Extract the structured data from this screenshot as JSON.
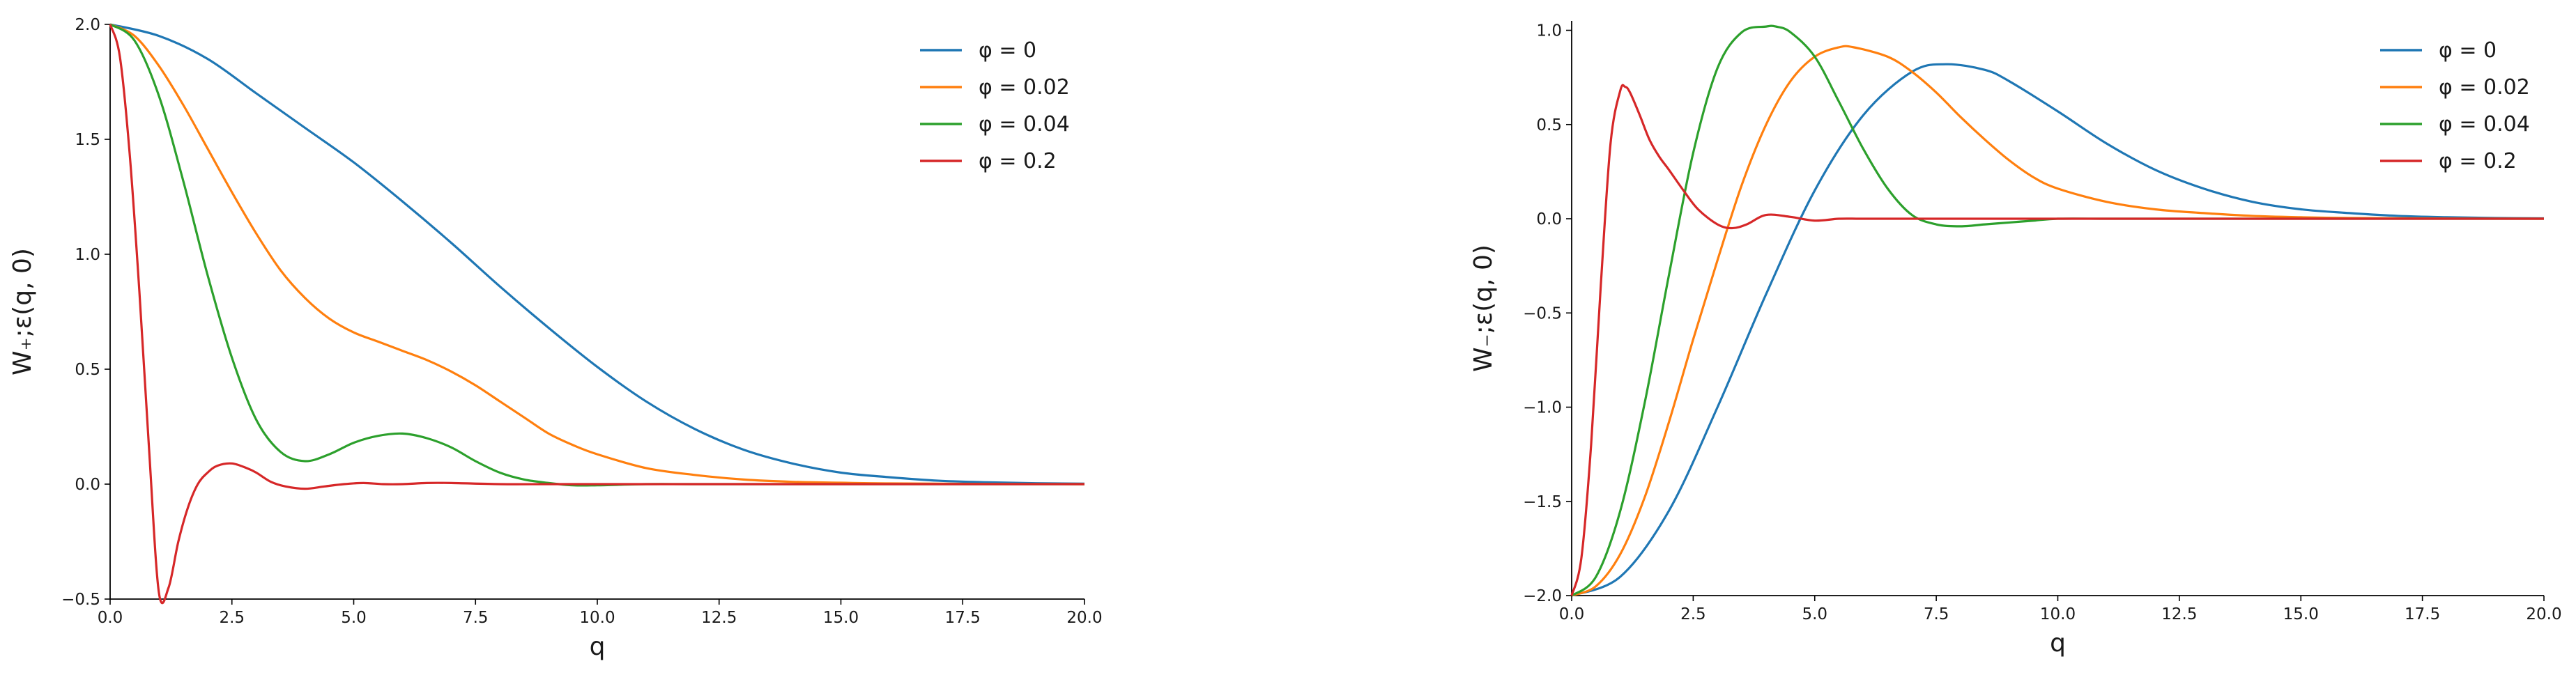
{
  "chart_data": [
    {
      "type": "line",
      "xlabel": "q",
      "ylabel": "W₊;ε(q, 0)",
      "xlim": [
        0,
        20
      ],
      "ylim": [
        -0.5,
        2.0
      ],
      "x_ticks": [
        0,
        2.5,
        5,
        7.5,
        10,
        12.5,
        15,
        17.5,
        20
      ],
      "x_tick_labels": [
        "0.0",
        "2.5",
        "5.0",
        "7.5",
        "10.0",
        "12.5",
        "15.0",
        "17.5",
        "20.0"
      ],
      "y_ticks": [
        -0.5,
        0,
        0.5,
        1.0,
        1.5,
        2.0
      ],
      "y_tick_labels": [
        "−0.5",
        "0.0",
        "0.5",
        "1.0",
        "1.5",
        "2.0"
      ],
      "grid": false,
      "legend_position": "top-right",
      "series": [
        {
          "name": "φ = 0",
          "color": "#1f77b4",
          "x": [
            0,
            1,
            2,
            3,
            4,
            5,
            6,
            7,
            8,
            9,
            10,
            11,
            12,
            13,
            14,
            15,
            16,
            17,
            18,
            19,
            20
          ],
          "y": [
            2.0,
            1.95,
            1.85,
            1.7,
            1.55,
            1.4,
            1.23,
            1.05,
            0.86,
            0.68,
            0.51,
            0.36,
            0.24,
            0.15,
            0.09,
            0.05,
            0.03,
            0.015,
            0.008,
            0.004,
            0.002
          ]
        },
        {
          "name": "φ = 0.02",
          "color": "#ff7f0e",
          "x": [
            0,
            0.5,
            1,
            1.5,
            2,
            2.5,
            3,
            3.5,
            4,
            4.5,
            5,
            5.5,
            6,
            6.5,
            7,
            7.5,
            8,
            8.5,
            9,
            9.5,
            10,
            11,
            12,
            13,
            14,
            15,
            16,
            18,
            20
          ],
          "y": [
            2.0,
            1.95,
            1.82,
            1.65,
            1.46,
            1.27,
            1.09,
            0.93,
            0.81,
            0.72,
            0.66,
            0.62,
            0.58,
            0.54,
            0.49,
            0.43,
            0.36,
            0.29,
            0.22,
            0.17,
            0.13,
            0.07,
            0.04,
            0.02,
            0.01,
            0.006,
            0.003,
            0.001,
            0.0
          ]
        },
        {
          "name": "φ = 0.04",
          "color": "#2ca02c",
          "x": [
            0,
            0.5,
            1,
            1.5,
            2,
            2.5,
            3,
            3.5,
            4,
            4.5,
            5,
            5.5,
            6,
            6.5,
            7,
            7.5,
            8,
            8.5,
            9,
            9.5,
            10,
            11,
            12,
            14,
            16,
            18,
            20
          ],
          "y": [
            2.0,
            1.93,
            1.69,
            1.32,
            0.91,
            0.55,
            0.28,
            0.14,
            0.1,
            0.13,
            0.18,
            0.21,
            0.22,
            0.2,
            0.16,
            0.1,
            0.05,
            0.02,
            0.005,
            -0.005,
            -0.005,
            0.0,
            0.0,
            0.0,
            0.0,
            0.0,
            0.0
          ]
        },
        {
          "name": "φ = 0.2",
          "color": "#d62728",
          "x": [
            0,
            0.2,
            0.4,
            0.6,
            0.8,
            1.0,
            1.2,
            1.4,
            1.6,
            1.8,
            2.0,
            2.2,
            2.5,
            2.8,
            3.0,
            3.3,
            3.6,
            4.0,
            4.4,
            4.8,
            5.2,
            5.6,
            6.0,
            6.5,
            7.0,
            8.0,
            9.0,
            10.0,
            12.0,
            14.0,
            16.0,
            18.0,
            20.0
          ],
          "y": [
            2.0,
            1.86,
            1.44,
            0.84,
            0.15,
            -0.47,
            -0.45,
            -0.25,
            -0.1,
            0.0,
            0.05,
            0.08,
            0.09,
            0.07,
            0.05,
            0.01,
            -0.01,
            -0.02,
            -0.01,
            0.0,
            0.005,
            0.0,
            0.0,
            0.005,
            0.005,
            0.0,
            0.0,
            0.0,
            0.0,
            0.0,
            0.0,
            0.0,
            0.0
          ]
        }
      ]
    },
    {
      "type": "line",
      "xlabel": "q",
      "ylabel": "W₋;ε(q, 0)",
      "xlim": [
        0,
        20
      ],
      "ylim": [
        -2.0,
        1.05
      ],
      "x_ticks": [
        0,
        2.5,
        5,
        7.5,
        10,
        12.5,
        15,
        17.5,
        20
      ],
      "x_tick_labels": [
        "0.0",
        "2.5",
        "5.0",
        "7.5",
        "10.0",
        "12.5",
        "15.0",
        "17.5",
        "20.0"
      ],
      "y_ticks": [
        -2.0,
        -1.5,
        -1.0,
        -0.5,
        0,
        0.5,
        1.0
      ],
      "y_tick_labels": [
        "−2.0",
        "−1.5",
        "−1.0",
        "−0.5",
        "0.0",
        "0.5",
        "1.0"
      ],
      "grid": false,
      "legend_position": "top-right",
      "series": [
        {
          "name": "φ = 0",
          "color": "#1f77b4",
          "x": [
            0,
            1,
            2,
            3,
            4,
            5,
            6,
            7,
            7.7,
            8.5,
            9,
            10,
            11,
            12,
            13,
            14,
            15,
            16,
            17,
            18,
            19,
            20
          ],
          "y": [
            -2.0,
            -1.9,
            -1.55,
            -1.0,
            -0.4,
            0.15,
            0.55,
            0.78,
            0.82,
            0.79,
            0.73,
            0.57,
            0.4,
            0.26,
            0.16,
            0.09,
            0.05,
            0.03,
            0.015,
            0.008,
            0.004,
            0.002
          ]
        },
        {
          "name": "φ = 0.02",
          "color": "#ff7f0e",
          "x": [
            0,
            0.5,
            1,
            1.5,
            2,
            2.5,
            3,
            3.5,
            4,
            4.5,
            5,
            5.5,
            5.8,
            6.5,
            7,
            7.5,
            8,
            8.5,
            9,
            9.5,
            10,
            11,
            12,
            13,
            14,
            15,
            16,
            18,
            20
          ],
          "y": [
            -2.0,
            -1.95,
            -1.78,
            -1.48,
            -1.08,
            -0.64,
            -0.22,
            0.18,
            0.5,
            0.73,
            0.86,
            0.91,
            0.91,
            0.86,
            0.78,
            0.67,
            0.54,
            0.42,
            0.31,
            0.22,
            0.16,
            0.09,
            0.05,
            0.03,
            0.015,
            0.008,
            0.004,
            0.001,
            0.0
          ]
        },
        {
          "name": "φ = 0.04",
          "color": "#2ca02c",
          "x": [
            0,
            0.5,
            1,
            1.5,
            2,
            2.5,
            3,
            3.5,
            4,
            4.2,
            4.5,
            5,
            5.5,
            6,
            6.5,
            7,
            7.5,
            8,
            8.5,
            9,
            9.5,
            10,
            11,
            12,
            14,
            16,
            18,
            20
          ],
          "y": [
            -2.0,
            -1.9,
            -1.55,
            -0.98,
            -0.3,
            0.35,
            0.8,
            0.99,
            1.02,
            1.02,
            0.99,
            0.86,
            0.62,
            0.37,
            0.16,
            0.02,
            -0.03,
            -0.04,
            -0.03,
            -0.02,
            -0.01,
            0.0,
            0.0,
            0.0,
            0.0,
            0.0,
            0.0,
            0.0
          ]
        },
        {
          "name": "φ = 0.2",
          "color": "#d62728",
          "x": [
            0,
            0.2,
            0.4,
            0.6,
            0.8,
            1.0,
            1.1,
            1.2,
            1.4,
            1.6,
            1.8,
            2.0,
            2.3,
            2.6,
            3.0,
            3.3,
            3.6,
            4.0,
            4.5,
            5.0,
            5.5,
            6.0,
            7.0,
            8.0,
            10.0,
            12.0,
            14.0,
            16.0,
            18.0,
            20.0
          ],
          "y": [
            -2.0,
            -1.8,
            -1.2,
            -0.35,
            0.4,
            0.68,
            0.7,
            0.67,
            0.55,
            0.42,
            0.33,
            0.26,
            0.15,
            0.05,
            -0.03,
            -0.05,
            -0.03,
            0.02,
            0.01,
            -0.01,
            0.0,
            0.0,
            0.0,
            0.0,
            0.0,
            0.0,
            0.0,
            0.0,
            0.0,
            0.0
          ]
        }
      ]
    }
  ]
}
